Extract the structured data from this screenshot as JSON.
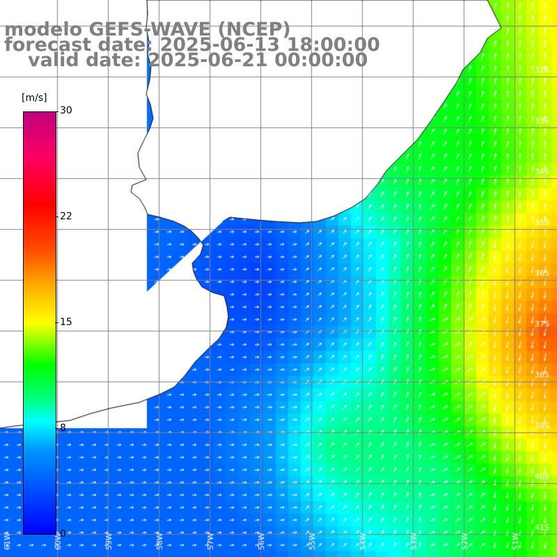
{
  "title": {
    "line1": "modelo GEFS-WAVE (NCEP)",
    "line2": "forecast date: 2025-06-13 18:00:00",
    "line3": "valid date: 2025-06-21 00:00:00"
  },
  "legend": {
    "unit": "[m/s]",
    "min": 0,
    "max": 30,
    "ticks": [
      {
        "label": "30",
        "value": 30
      },
      {
        "label": "22",
        "value": 22
      },
      {
        "label": "15",
        "value": 15
      },
      {
        "label": "8",
        "value": 8
      },
      {
        "label": "0",
        "value": 0
      }
    ]
  },
  "grid": {
    "lat_labels": [
      "32S",
      "33S",
      "34S",
      "35S",
      "36S",
      "37S",
      "38S",
      "39S",
      "40S",
      "41S"
    ],
    "lon_labels": [
      "61W",
      "60W",
      "59W",
      "58W",
      "57W",
      "56W",
      "55W",
      "54W",
      "53W",
      "52W",
      "51W"
    ]
  },
  "colors": {
    "land": "#ffffff",
    "grid_line": "#808080",
    "coast": "#000000",
    "arrows": "#ffffff",
    "title_text": "#808080"
  }
}
